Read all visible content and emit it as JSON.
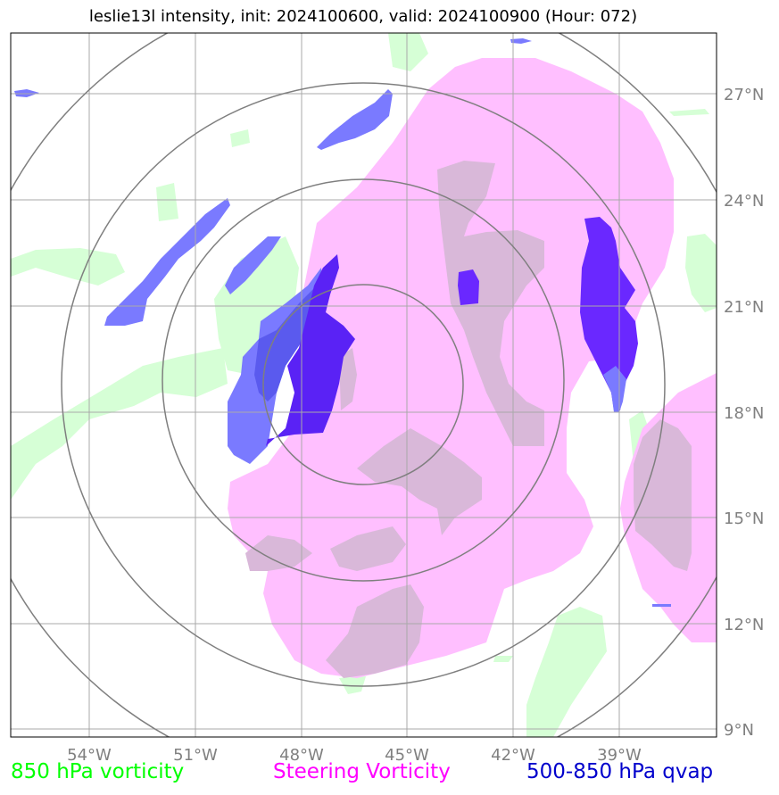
{
  "title": "leslie13l intensity, init: 2024100600, valid: 2024100900 (Hour: 072)",
  "map": {
    "lon_ticks": [
      "54°W",
      "51°W",
      "48°W",
      "45°W",
      "42°W",
      "39°W"
    ],
    "lat_ticks": [
      "27°N",
      "24°N",
      "21°N",
      "18°N",
      "15°N",
      "12°N",
      "9°N"
    ],
    "range_rings": 4,
    "gridlines": true
  },
  "legend": {
    "items": [
      {
        "label": "850 hPa vorticity",
        "color": "#00ff00"
      },
      {
        "label": "Steering Vorticity",
        "color": "#ff00ff"
      },
      {
        "label": "500-850 hPa qvap",
        "color": "#0000cc"
      }
    ]
  },
  "colors": {
    "vort850_fill": "#d6ffd6",
    "steering_fill": "#ffbfff",
    "steering_core": "#d9b8d9",
    "qvap_light": "#7a7aff",
    "qvap_mid": "#5a5aee",
    "qvap_dark": "#6a28ff",
    "grid": "#a9a9a9",
    "rings": "#7f7f7f"
  }
}
